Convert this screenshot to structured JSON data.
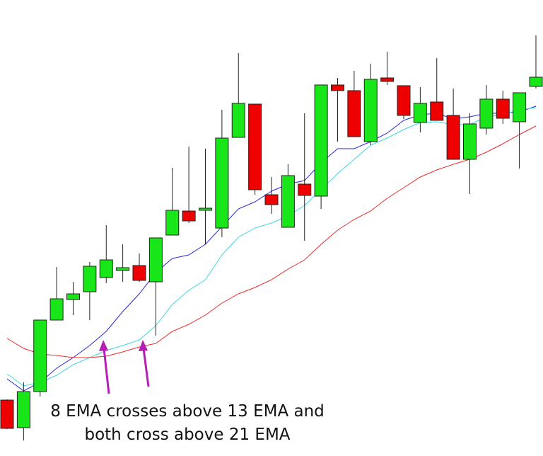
{
  "chart_data": {
    "type": "candlestick",
    "ylim": [
      0,
      644
    ],
    "up_color": "#19e619",
    "down_color": "#ee0000",
    "open": [
      79,
      40,
      91,
      192,
      221,
      232,
      252,
      262,
      269,
      246,
      312,
      346,
      347,
      322,
      450,
      497,
      369,
      323,
      384,
      367,
      524,
      516,
      444,
      534,
      523,
      471,
      500,
      481,
      419,
      463,
      504,
      472,
      522
    ],
    "high": [
      80,
      104,
      192,
      267,
      246,
      274,
      326,
      299,
      286,
      308,
      407,
      437,
      434,
      489,
      569,
      497,
      394,
      412,
      484,
      524,
      534,
      544,
      554,
      571,
      523,
      521,
      562,
      519,
      484,
      524,
      516,
      513,
      594
    ],
    "low": [
      38,
      22,
      84,
      192,
      199,
      192,
      244,
      246,
      246,
      170,
      312,
      329,
      299,
      309,
      450,
      369,
      342,
      323,
      304,
      349,
      444,
      451,
      439,
      524,
      476,
      457,
      474,
      419,
      370,
      454,
      469,
      406,
      519
    ],
    "close": [
      39,
      91,
      192,
      222,
      229,
      268,
      277,
      266,
      248,
      308,
      347,
      332,
      350,
      449,
      498,
      376,
      355,
      396,
      368,
      524,
      516,
      451,
      532,
      529,
      481,
      498,
      474,
      419,
      469,
      504,
      477,
      513,
      535
    ],
    "lines": [
      {
        "color": "#2a2ad8",
        "values": [
          109,
          92,
          104,
          124,
          139,
          156,
          176,
          204,
          229,
          259,
          279,
          284,
          299,
          324,
          349,
          359,
          374,
          384,
          389,
          414,
          434,
          434,
          444,
          456,
          474,
          482,
          484,
          476,
          479,
          484,
          484,
          486,
          494
        ]
      },
      {
        "color": "#3fd6e0",
        "values": [
          116,
          99,
          104,
          114,
          129,
          139,
          149,
          156,
          164,
          184,
          214,
          234,
          249,
          284,
          309,
          322,
          329,
          339,
          354,
          376,
          399,
          419,
          439,
          449,
          461,
          471,
          472,
          468,
          468,
          479,
          482,
          489,
          492
        ]
      },
      {
        "color": "#ee2a2a",
        "values": [
          166,
          152,
          144,
          142,
          139,
          139,
          141,
          147,
          154,
          159,
          176,
          186,
          199,
          216,
          229,
          238,
          249,
          264,
          277,
          299,
          319,
          334,
          346,
          364,
          379,
          394,
          404,
          412,
          419,
          429,
          441,
          454,
          466
        ]
      }
    ],
    "annotation": [
      "8 EMA crosses above 13 EMA and",
      "both cross above 21 EMA"
    ]
  }
}
